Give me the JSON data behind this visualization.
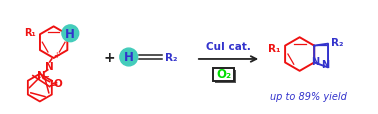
{
  "bg_color": "#ffffff",
  "red": "#ee1111",
  "blue": "#3333cc",
  "green": "#00dd00",
  "teal": "#44ccbb",
  "dark": "#222222",
  "figsize": [
    3.78,
    1.15
  ],
  "dpi": 100,
  "cui_text": "CuI cat.",
  "yield_text": "up to 89% yield",
  "o2_text": "O₂",
  "plus_sign": "+",
  "r1_label": "R₁",
  "r2_label": "R₂",
  "h_label": "H"
}
